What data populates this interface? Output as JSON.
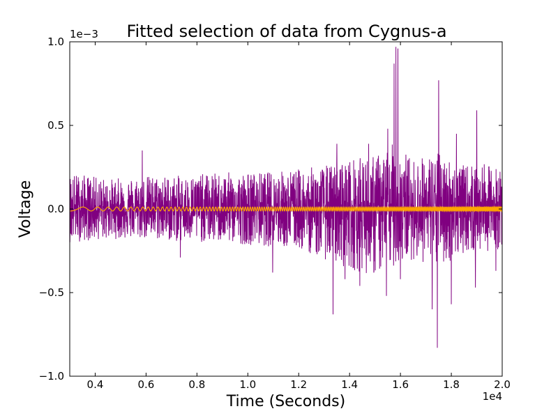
{
  "chart_data": {
    "type": "line",
    "title": "Fitted selection of data from Cygnus-a",
    "xlabel": "Time (Seconds)",
    "ylabel": "Voltage",
    "x_offset_label": "1e4",
    "y_offset_label": "1e−3",
    "xlim": [
      0.3,
      2.0
    ],
    "ylim": [
      -1.0,
      1.0
    ],
    "grid": false,
    "x_ticks": [
      {
        "value": 0.4,
        "label": "0.4"
      },
      {
        "value": 0.6,
        "label": "0.6"
      },
      {
        "value": 0.8,
        "label": "0.8"
      },
      {
        "value": 1.0,
        "label": "1.0"
      },
      {
        "value": 1.2,
        "label": "1.2"
      },
      {
        "value": 1.4,
        "label": "1.4"
      },
      {
        "value": 1.6,
        "label": "1.6"
      },
      {
        "value": 1.8,
        "label": "1.8"
      },
      {
        "value": 2.0,
        "label": "2.0"
      }
    ],
    "y_ticks": [
      {
        "value": 1.0,
        "label": "1.0"
      },
      {
        "value": 0.5,
        "label": "0.5"
      },
      {
        "value": 0.0,
        "label": "0.0"
      },
      {
        "value": -0.5,
        "label": "−0.5"
      },
      {
        "value": -1.0,
        "label": "−1.0"
      }
    ],
    "series": [
      {
        "color": "#800080",
        "envelope": {
          "x": [
            0.3,
            0.45,
            0.6,
            0.75,
            0.9,
            1.05,
            1.2,
            1.3,
            1.4,
            1.5,
            1.58,
            1.65,
            1.75,
            1.85,
            1.9,
            2.0
          ],
          "upper": [
            0.22,
            0.18,
            0.2,
            0.2,
            0.22,
            0.22,
            0.24,
            0.26,
            0.3,
            0.32,
            0.4,
            0.3,
            0.34,
            0.26,
            0.28,
            0.24
          ],
          "lower": [
            -0.2,
            -0.18,
            -0.18,
            -0.2,
            -0.2,
            -0.22,
            -0.24,
            -0.3,
            -0.36,
            -0.4,
            -0.34,
            -0.3,
            -0.36,
            -0.26,
            -0.26,
            -0.24
          ]
        },
        "spikes": [
          {
            "x": 0.585,
            "y": 0.35
          },
          {
            "x": 0.735,
            "y": -0.29
          },
          {
            "x": 1.098,
            "y": -0.38
          },
          {
            "x": 1.335,
            "y": -0.63
          },
          {
            "x": 1.35,
            "y": 0.39
          },
          {
            "x": 1.382,
            "y": -0.42
          },
          {
            "x": 1.44,
            "y": -0.46
          },
          {
            "x": 1.475,
            "y": 0.39
          },
          {
            "x": 1.545,
            "y": -0.52
          },
          {
            "x": 1.55,
            "y": 0.48
          },
          {
            "x": 1.575,
            "y": 0.87
          },
          {
            "x": 1.582,
            "y": 0.97
          },
          {
            "x": 1.59,
            "y": 0.96
          },
          {
            "x": 1.6,
            "y": -0.42
          },
          {
            "x": 1.725,
            "y": -0.6
          },
          {
            "x": 1.745,
            "y": -0.83
          },
          {
            "x": 1.75,
            "y": 0.77
          },
          {
            "x": 1.8,
            "y": -0.57
          },
          {
            "x": 1.82,
            "y": 0.45
          },
          {
            "x": 1.9,
            "y": 0.59
          },
          {
            "x": 1.895,
            "y": -0.47
          },
          {
            "x": 1.975,
            "y": -0.37
          }
        ]
      },
      {
        "color": "#ffa500",
        "type": "chirp",
        "x_start": 0.3,
        "x_end": 2.0,
        "amplitude": 0.012,
        "start_cycles_per_unit": 6,
        "chirp_rate": 140
      }
    ]
  }
}
